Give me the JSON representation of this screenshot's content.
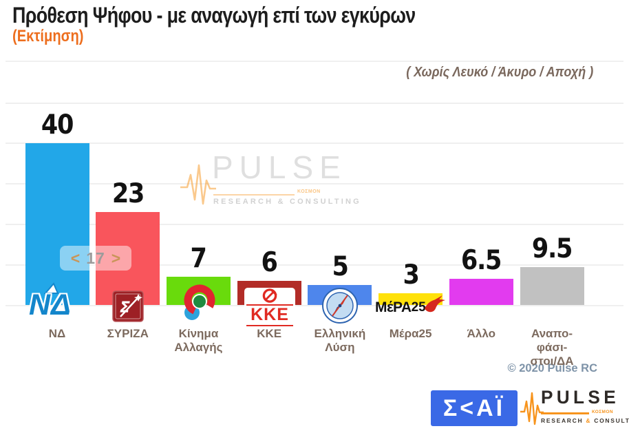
{
  "header": {
    "title": "Πρόθεση Ψήφου - με αναγωγή επί των εγκύρων",
    "subtitle": "(Εκτίμηση)",
    "note": "( Χωρίς Λευκό / Άκυρο / Αποχή )"
  },
  "chart_data": {
    "type": "bar",
    "title": "Πρόθεση Ψήφου - με αναγωγή επί των εγκύρων (Εκτίμηση)",
    "subtitle_note": "( Χωρίς Λευκό / Άκυρο / Αποχή )",
    "categories": [
      "ΝΔ",
      "ΣΥΡΙΖΑ",
      "Κίνημα Αλλαγής",
      "ΚΚΕ",
      "Ελληνική Λύση",
      "Μέρα25",
      "Άλλο",
      "Αναποφάσιστοι/ΔΑ"
    ],
    "categories_display": [
      [
        "ΝΔ"
      ],
      [
        "ΣΥΡΙΖΑ"
      ],
      [
        "Κίνημα",
        "Αλλαγής"
      ],
      [
        "ΚΚΕ"
      ],
      [
        "Ελληνική",
        "Λύση"
      ],
      [
        "Μέρα25"
      ],
      [
        "Άλλο"
      ],
      [
        "Αναπο-",
        "φάσι-",
        "στοι/ΔΑ"
      ]
    ],
    "values": [
      40,
      23,
      7,
      6,
      5,
      3,
      6.5,
      9.5
    ],
    "bar_colors": [
      "#22A7E8",
      "#F9555C",
      "#69DB0C",
      "#B22C27",
      "#4E86EC",
      "#FFE10A",
      "#E23BEF",
      "#C1C1C1"
    ],
    "xlabel": "",
    "ylabel": "",
    "ylim": [
      0,
      50
    ],
    "gridline_step": 10,
    "grid": true,
    "legend": false,
    "annotation": {
      "value": 17,
      "display": "< 17 >",
      "between": [
        "ΝΔ",
        "ΣΥΡΙΖΑ"
      ]
    }
  },
  "annotation": {
    "open": "<",
    "value": "17",
    "close": ">"
  },
  "watermark": {
    "brand": "PULSE",
    "mark": "ΚΟΣΜΟΝ",
    "tagline_research": "RESEARCH",
    "tagline_amp": "&",
    "tagline_consulting": "CONSULTING"
  },
  "party_logos": {
    "nd": "ΝΔ",
    "syriza_letter": "Σ",
    "kke": "ΚΚΕ",
    "mera25_text": "ΜέΡΑ",
    "mera25_num": "25"
  },
  "footer": {
    "copyright": "© 2020 Pulse RC",
    "skai": "Σ<ΑΪ",
    "pulse_brand": "PULSE",
    "pulse_mark": "ΚΟΣΜΟΝ",
    "tagline_research": "RESEARCH",
    "tagline_amp": "&",
    "tagline_consulting": "CONSULTING"
  }
}
